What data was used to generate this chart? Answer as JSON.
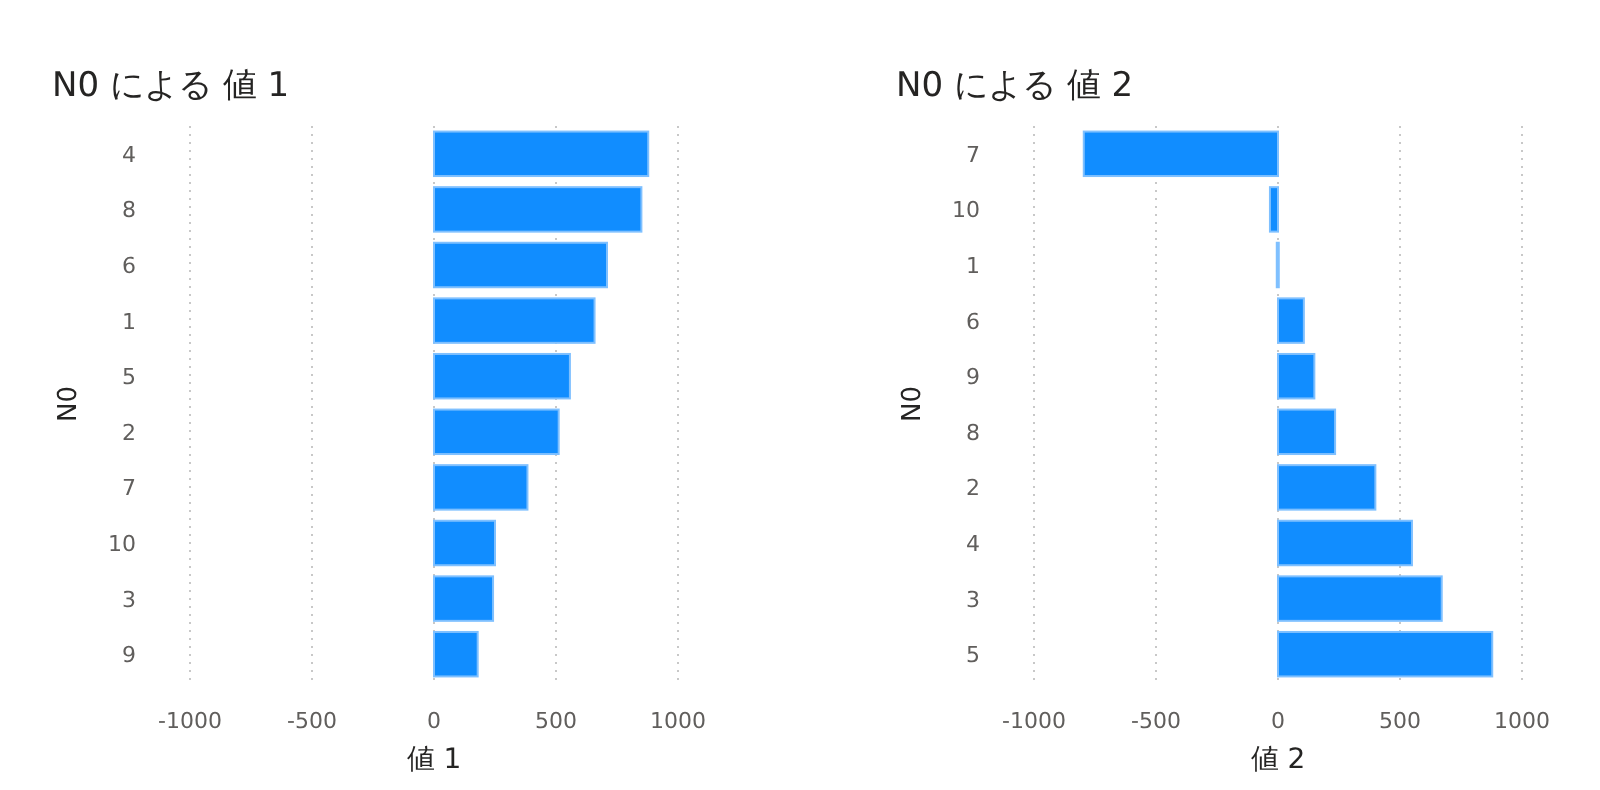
{
  "chart_data": [
    {
      "type": "bar",
      "orientation": "horizontal",
      "title": "N0 による 値 1",
      "xlabel": "値 1",
      "ylabel": "N0",
      "categories": [
        "4",
        "8",
        "6",
        "1",
        "5",
        "2",
        "7",
        "10",
        "3",
        "9"
      ],
      "values": [
        878,
        850,
        709,
        658,
        557,
        511,
        383,
        250,
        242,
        179
      ],
      "color": "#118dff",
      "xlim": [
        -1000,
        1000
      ],
      "xticks": [
        -1000,
        -500,
        0,
        500,
        1000
      ],
      "grid": "x"
    },
    {
      "type": "bar",
      "orientation": "horizontal",
      "title": "N0 による 値 2",
      "xlabel": "値 2",
      "ylabel": "N0",
      "categories": [
        "7",
        "10",
        "1",
        "6",
        "9",
        "8",
        "2",
        "4",
        "3",
        "5"
      ],
      "values": [
        -796,
        -33,
        -5,
        106,
        149,
        234,
        399,
        549,
        671,
        878
      ],
      "color": "#118dff",
      "xlim": [
        -1000,
        1000
      ],
      "xticks": [
        -1000,
        -500,
        0,
        500,
        1000
      ],
      "grid": "x"
    }
  ]
}
